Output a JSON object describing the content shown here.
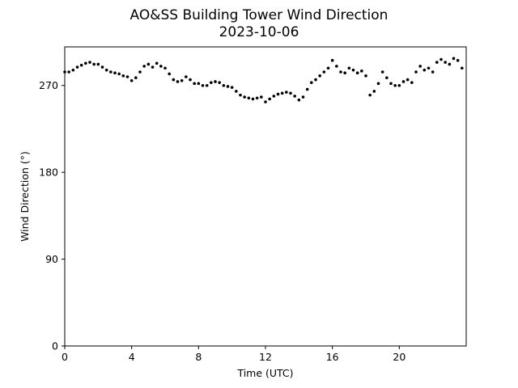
{
  "chart_data": {
    "type": "scatter",
    "title": "AO&SS Building Tower Wind Direction",
    "subtitle": "2023-10-06",
    "xlabel": "Time (UTC)",
    "ylabel": "Wind Direction (°)",
    "xlim": [
      0,
      24
    ],
    "ylim": [
      0,
      310
    ],
    "xticks": [
      0,
      4,
      8,
      12,
      16,
      20
    ],
    "yticks": [
      0,
      90,
      180,
      270
    ],
    "grid": false,
    "marker_color": "#000000",
    "series": [
      {
        "name": "",
        "x": [
          0.0,
          0.25,
          0.5,
          0.75,
          1.0,
          1.25,
          1.5,
          1.75,
          2.0,
          2.25,
          2.5,
          2.75,
          3.0,
          3.25,
          3.5,
          3.75,
          4.0,
          4.25,
          4.5,
          4.75,
          5.0,
          5.25,
          5.5,
          5.75,
          6.0,
          6.25,
          6.5,
          6.75,
          7.0,
          7.25,
          7.5,
          7.75,
          8.0,
          8.25,
          8.5,
          8.75,
          9.0,
          9.25,
          9.5,
          9.75,
          10.0,
          10.25,
          10.5,
          10.75,
          11.0,
          11.25,
          11.5,
          11.75,
          12.0,
          12.25,
          12.5,
          12.75,
          13.0,
          13.25,
          13.5,
          13.75,
          14.0,
          14.25,
          14.5,
          14.75,
          15.0,
          15.25,
          15.5,
          15.75,
          16.0,
          16.25,
          16.5,
          16.75,
          17.0,
          17.25,
          17.5,
          17.75,
          18.0,
          18.25,
          18.5,
          18.75,
          19.0,
          19.25,
          19.5,
          19.75,
          20.0,
          20.25,
          20.5,
          20.75,
          21.0,
          21.25,
          21.5,
          21.75,
          22.0,
          22.25,
          22.5,
          22.75,
          23.0,
          23.25,
          23.5,
          23.75
        ],
        "y": [
          284,
          284,
          286,
          289,
          291,
          293,
          294,
          292,
          292,
          289,
          286,
          284,
          283,
          282,
          280,
          279,
          275,
          278,
          284,
          290,
          292,
          289,
          293,
          290,
          288,
          282,
          276,
          274,
          275,
          279,
          276,
          272,
          272,
          270,
          270,
          273,
          274,
          273,
          270,
          269,
          268,
          264,
          260,
          258,
          257,
          256,
          257,
          258,
          253,
          256,
          259,
          261,
          262,
          263,
          262,
          259,
          255,
          258,
          266,
          273,
          276,
          280,
          284,
          288,
          296,
          290,
          284,
          283,
          288,
          286,
          283,
          285,
          280,
          260,
          264,
          272,
          284,
          278,
          272,
          270,
          270,
          274,
          276,
          273,
          284,
          290,
          286,
          288,
          284,
          294,
          297,
          294,
          292,
          298,
          296,
          288
        ]
      }
    ]
  }
}
